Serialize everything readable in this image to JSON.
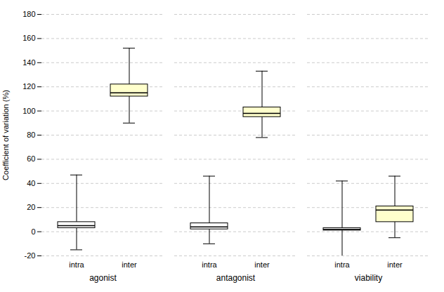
{
  "chart_data": {
    "type": "box",
    "categories": [
      "intra",
      "inter",
      "intra",
      "inter",
      "intra",
      "inter"
    ],
    "groups": [
      "agonist",
      "agonist",
      "antagonist",
      "antagonist",
      "viability",
      "viability"
    ],
    "whisker_low": [
      -15,
      90,
      -10,
      78,
      -20,
      -5
    ],
    "q1": [
      3,
      112,
      2,
      95,
      1,
      8
    ],
    "median": [
      5,
      115,
      4,
      98,
      2,
      18
    ],
    "q3": [
      8,
      122,
      7,
      103,
      3,
      21
    ],
    "whisker_high": [
      47,
      152,
      46,
      133,
      42,
      46
    ],
    "colors": [
      "white",
      "#ffffcc",
      "white",
      "#ffffcc",
      "white",
      "#ffffcc"
    ],
    "ylabel": "Coefficient of variation (%)",
    "ylim": [
      -20,
      180
    ],
    "yticks": [
      -20,
      0,
      20,
      40,
      60,
      80,
      100,
      120,
      140,
      160,
      180
    ],
    "grid": true
  }
}
